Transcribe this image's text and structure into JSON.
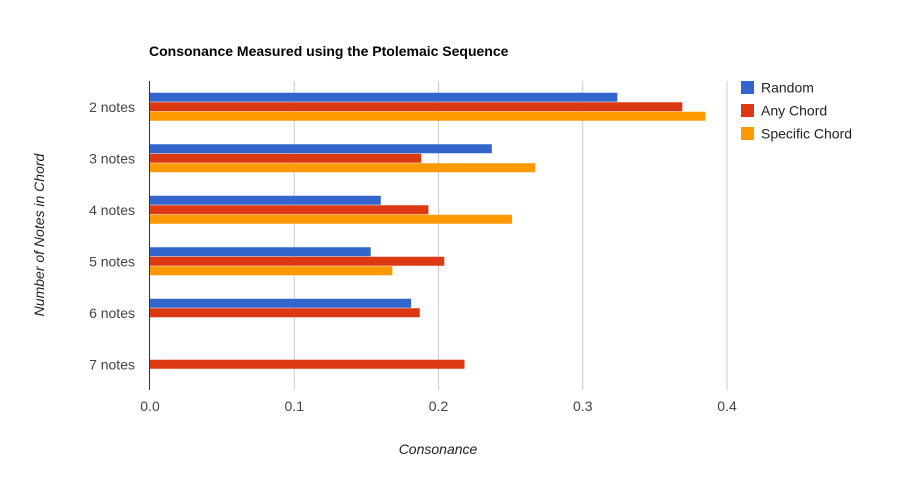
{
  "chart_data": {
    "type": "bar",
    "orientation": "horizontal",
    "title": "Consonance Measured using the Ptolemaic Sequence",
    "xlabel": "Consonance",
    "ylabel": "Number of Notes in Chord",
    "categories": [
      "2 notes",
      "3 notes",
      "4 notes",
      "5 notes",
      "6 notes",
      "7 notes"
    ],
    "series": [
      {
        "name": "Random",
        "color": "#3366cc",
        "values": [
          0.324,
          0.237,
          0.16,
          0.153,
          0.181,
          null
        ]
      },
      {
        "name": "Any Chord",
        "color": "#dc3912",
        "values": [
          0.369,
          0.188,
          0.193,
          0.204,
          0.187,
          0.218
        ]
      },
      {
        "name": "Specific Chord",
        "color": "#ff9900",
        "values": [
          0.385,
          0.267,
          0.251,
          0.168,
          null,
          null
        ]
      }
    ],
    "xticks": [
      "0.0",
      "0.1",
      "0.2",
      "0.3",
      "0.4"
    ],
    "xtick_values": [
      0,
      0.1,
      0.2,
      0.3,
      0.4
    ],
    "xlim": [
      0,
      0.4
    ],
    "grid": true,
    "legend_position": "right"
  }
}
